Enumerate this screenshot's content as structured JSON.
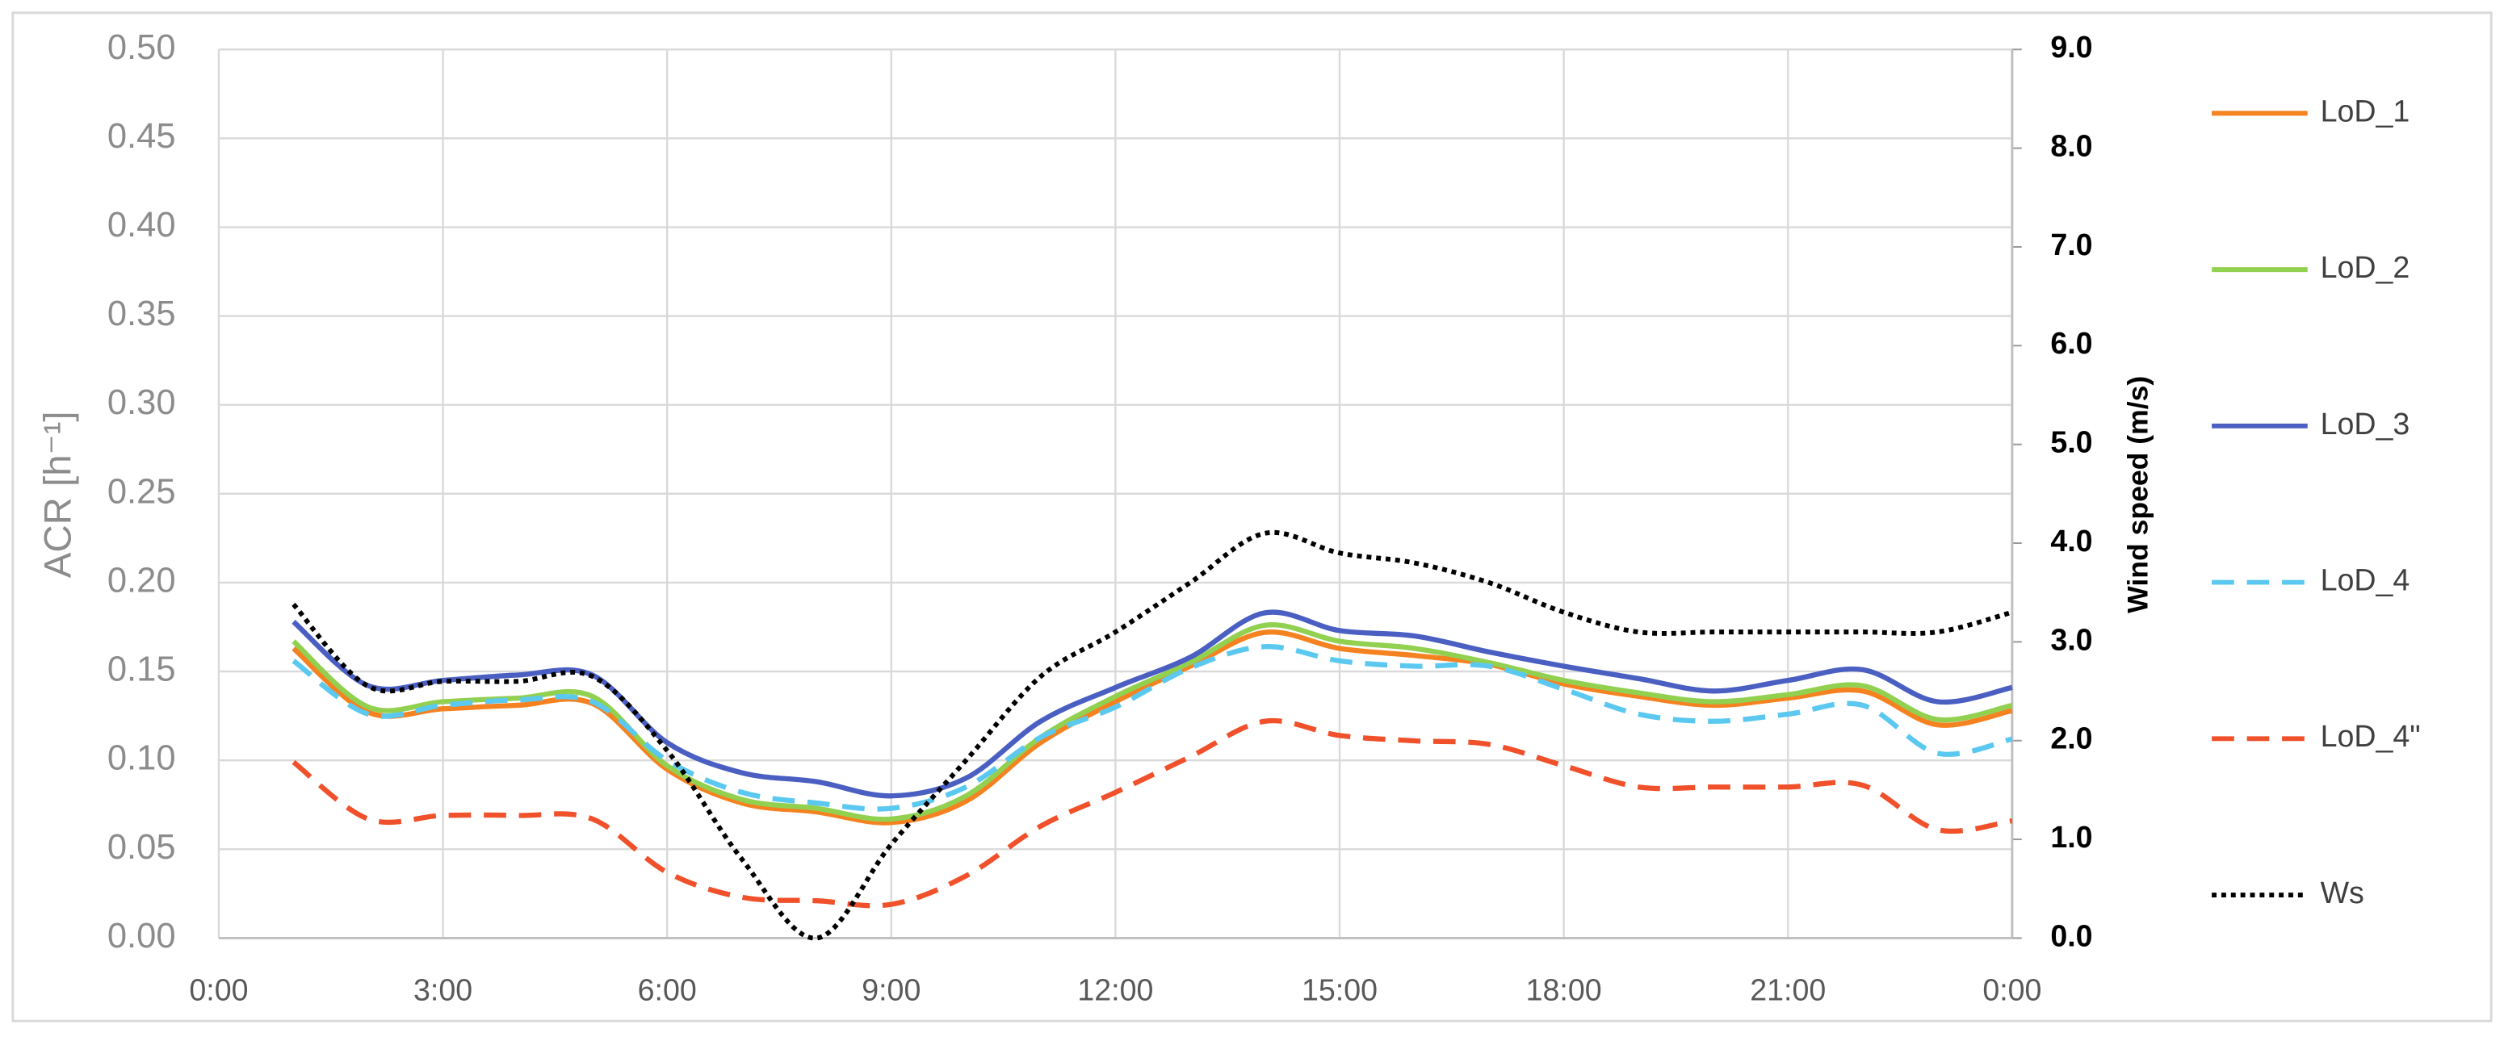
{
  "chart_data": {
    "type": "line",
    "x_ticks_hours": null,
    "x": [
      1,
      2,
      3,
      4,
      5,
      6,
      7,
      8,
      9,
      10,
      11,
      12,
      13,
      14,
      15,
      16,
      17,
      18,
      19,
      20,
      21,
      22,
      23,
      24
    ],
    "xlim": [
      0,
      24
    ],
    "xticks": [
      {
        "value": 0,
        "label": "0:00"
      },
      {
        "value": 3,
        "label": "3:00"
      },
      {
        "value": 6,
        "label": "6:00"
      },
      {
        "value": 9,
        "label": "9:00"
      },
      {
        "value": 12,
        "label": "12:00"
      },
      {
        "value": 15,
        "label": "15:00"
      },
      {
        "value": 18,
        "label": "18:00"
      },
      {
        "value": 21,
        "label": "21:00"
      },
      {
        "value": 24,
        "label": "0:00"
      }
    ],
    "y_label": "ACR [h⁻¹]",
    "ylim": [
      0,
      0.5
    ],
    "yticks": [
      {
        "value": 0,
        "label": "0.00"
      },
      {
        "value": 0.05,
        "label": "0.05"
      },
      {
        "value": 0.1,
        "label": "0.10"
      },
      {
        "value": 0.15,
        "label": "0.15"
      },
      {
        "value": 0.2,
        "label": "0.20"
      },
      {
        "value": 0.25,
        "label": "0.25"
      },
      {
        "value": 0.3,
        "label": "0.30"
      },
      {
        "value": 0.35,
        "label": "0.35"
      },
      {
        "value": 0.4,
        "label": "0.40"
      },
      {
        "value": 0.45,
        "label": "0.45"
      },
      {
        "value": 0.5,
        "label": "0.50"
      }
    ],
    "y2_label": "Wind speed (m/s)",
    "y2lim": [
      0,
      9
    ],
    "y2ticks": [
      {
        "value": 0,
        "label": "0.0"
      },
      {
        "value": 1,
        "label": "1.0"
      },
      {
        "value": 2,
        "label": "2.0"
      },
      {
        "value": 3,
        "label": "3.0"
      },
      {
        "value": 4,
        "label": "4.0"
      },
      {
        "value": 5,
        "label": "5.0"
      },
      {
        "value": 6,
        "label": "6.0"
      },
      {
        "value": 7,
        "label": "7.0"
      },
      {
        "value": 8,
        "label": "8.0"
      },
      {
        "value": 9,
        "label": "9.0"
      }
    ],
    "grid": true,
    "legend": "right",
    "series": [
      {
        "name": "LoD_1",
        "color": "#f58220",
        "style": "solid",
        "values": [
          0.163,
          0.127,
          0.129,
          0.131,
          0.132,
          0.095,
          0.076,
          0.071,
          0.065,
          0.077,
          0.11,
          0.133,
          0.153,
          0.172,
          0.163,
          0.159,
          0.154,
          0.143,
          0.136,
          0.131,
          0.135,
          0.139,
          0.12,
          0.128
        ]
      },
      {
        "name": "LoD_2",
        "color": "#92d050",
        "style": "solid",
        "values": [
          0.167,
          0.13,
          0.133,
          0.135,
          0.136,
          0.097,
          0.078,
          0.073,
          0.067,
          0.08,
          0.113,
          0.136,
          0.155,
          0.176,
          0.167,
          0.163,
          0.155,
          0.145,
          0.138,
          0.133,
          0.137,
          0.142,
          0.123,
          0.131
        ]
      },
      {
        "name": "LoD_3",
        "color": "#4a5fc1",
        "style": "solid",
        "values": [
          0.178,
          0.142,
          0.145,
          0.148,
          0.148,
          0.11,
          0.093,
          0.088,
          0.08,
          0.09,
          0.122,
          0.141,
          0.158,
          0.183,
          0.173,
          0.17,
          0.161,
          0.153,
          0.146,
          0.139,
          0.145,
          0.151,
          0.133,
          0.141
        ]
      },
      {
        "name": "LoD_4",
        "color": "#5bc8f0",
        "style": "dashed",
        "values": [
          0.156,
          0.126,
          0.131,
          0.134,
          0.133,
          0.1,
          0.082,
          0.076,
          0.073,
          0.085,
          0.113,
          0.13,
          0.152,
          0.164,
          0.156,
          0.153,
          0.153,
          0.14,
          0.126,
          0.122,
          0.126,
          0.131,
          0.104,
          0.112
        ]
      },
      {
        "name": "LoD_4\"",
        "color": "#f0502a",
        "style": "dashed",
        "values": [
          0.099,
          0.067,
          0.069,
          0.069,
          0.067,
          0.037,
          0.023,
          0.021,
          0.019,
          0.035,
          0.063,
          0.082,
          0.102,
          0.122,
          0.114,
          0.111,
          0.109,
          0.097,
          0.085,
          0.085,
          0.085,
          0.086,
          0.061,
          0.066
        ]
      },
      {
        "name": "Ws",
        "color": "#000000",
        "style": "dotted",
        "axis": "y2",
        "values": [
          3.38,
          2.55,
          2.6,
          2.6,
          2.65,
          1.9,
          0.8,
          0,
          0.95,
          1.8,
          2.65,
          3.1,
          3.6,
          4.1,
          3.9,
          3.8,
          3.6,
          3.3,
          3.1,
          3.1,
          3.1,
          3.1,
          3.1,
          3.3
        ]
      }
    ]
  }
}
